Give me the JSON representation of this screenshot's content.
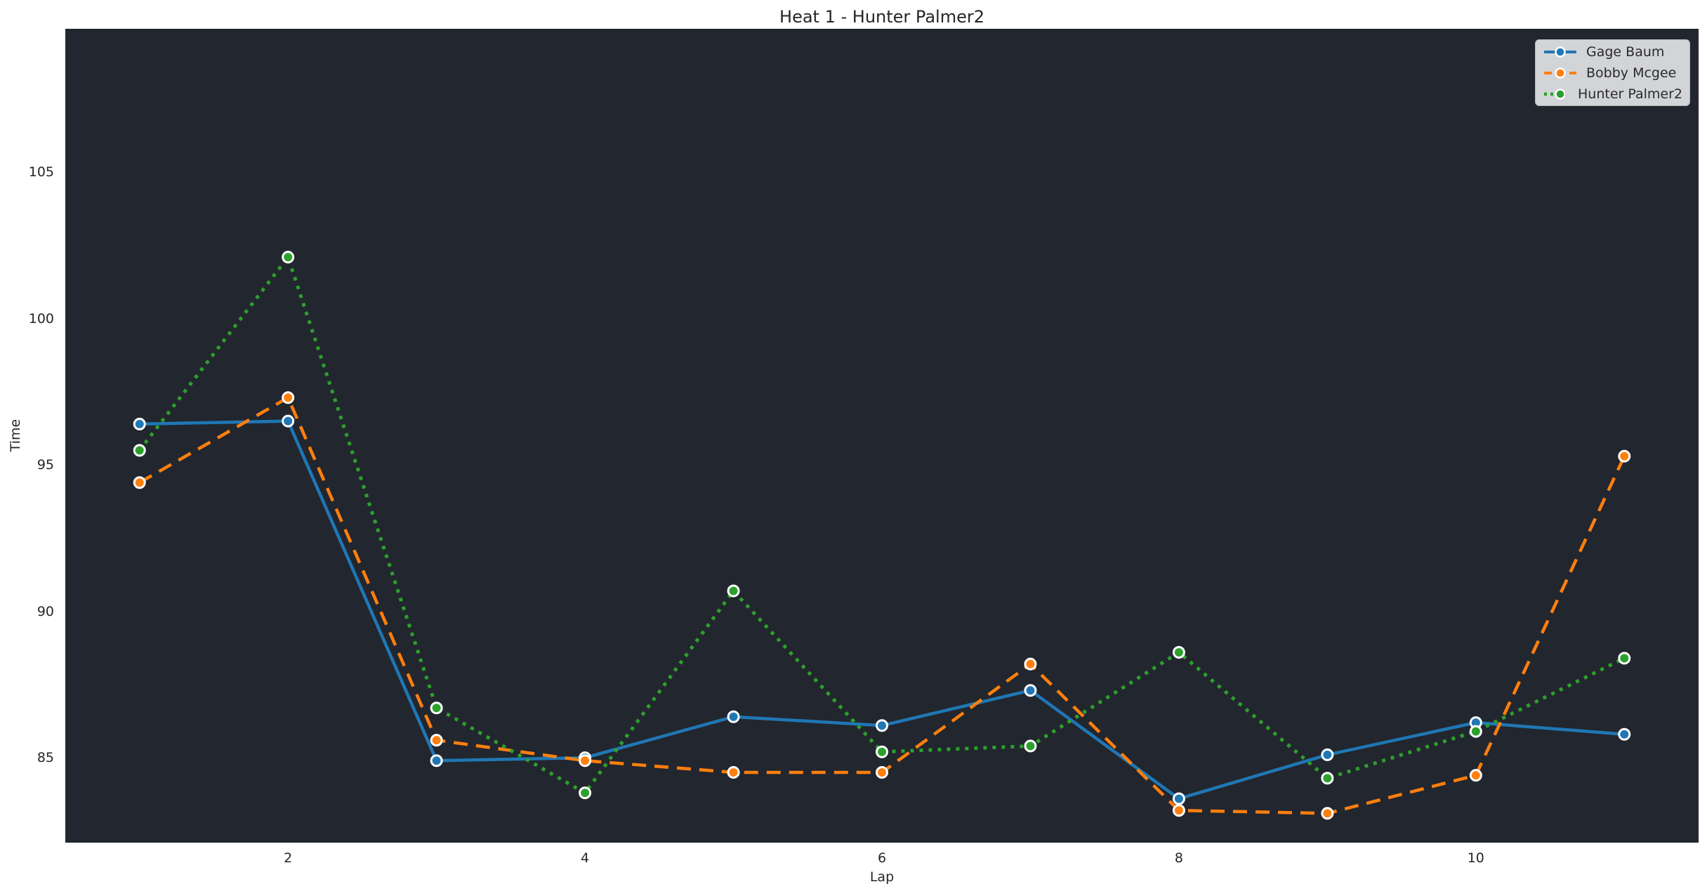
{
  "figure": {
    "background_color": "#ffffff",
    "plot_background_color": "#22262e",
    "text_color": "#262626"
  },
  "chart_data": {
    "type": "line",
    "title": "Heat 1 - Hunter Palmer2",
    "xlabel": "Lap",
    "ylabel": "Time",
    "x": [
      1,
      2,
      3,
      4,
      5,
      6,
      7,
      8,
      9,
      10,
      11
    ],
    "series": [
      {
        "name": "Gage Baum",
        "color": "#1f77b4",
        "linestyle": "solid",
        "marker": "circle",
        "values": [
          96.4,
          96.5,
          84.9,
          85.0,
          86.4,
          86.1,
          87.3,
          83.6,
          85.1,
          86.2,
          85.8
        ]
      },
      {
        "name": "Bobby Mcgee",
        "color": "#ff7f0e",
        "linestyle": "dashed",
        "marker": "circle",
        "values": [
          94.4,
          97.3,
          85.6,
          84.9,
          84.5,
          84.5,
          88.2,
          83.2,
          83.1,
          84.4,
          95.3
        ]
      },
      {
        "name": "Hunter Palmer2",
        "color": "#2ca02c",
        "linestyle": "dotted",
        "marker": "circle",
        "values": [
          95.5,
          102.1,
          86.7,
          83.8,
          90.7,
          85.2,
          85.4,
          88.6,
          84.3,
          85.9,
          88.4
        ]
      }
    ],
    "xlim": [
      0.5,
      11.5
    ],
    "ylim": [
      82.1,
      109.9
    ],
    "xticks": [
      2,
      4,
      6,
      8,
      10
    ],
    "yticks": [
      85,
      90,
      95,
      100,
      105
    ],
    "grid": false,
    "legend_position": "upper right",
    "marker_edge_color": "#ffffff",
    "legend_background": "#d2d4d8"
  }
}
